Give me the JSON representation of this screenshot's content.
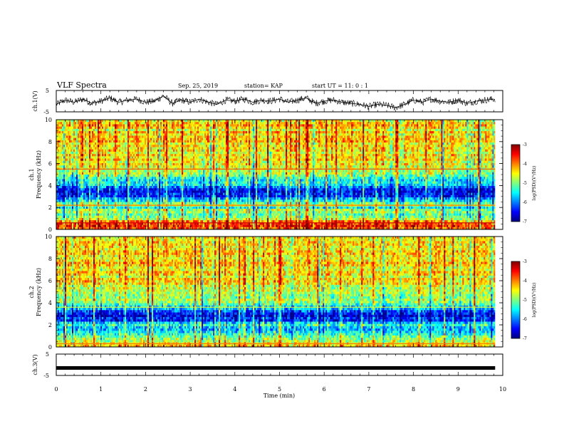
{
  "header": {
    "title": "VLF Spectra",
    "date": "Sep. 25, 2019",
    "station": "station= KAP",
    "start": "start UT =  11: 0  : 1"
  },
  "colormap": [
    "#00007f",
    "#0000ff",
    "#007fff",
    "#00ffff",
    "#7fff7f",
    "#ffff00",
    "#ff7f00",
    "#ff0000",
    "#7f0000"
  ],
  "chart_data": [
    {
      "id": "ch1-waveform",
      "type": "line",
      "ylabel": "ch.1(V)",
      "ylim": [
        -5,
        5
      ],
      "yticks": [
        "5",
        "-5"
      ],
      "xlim": [
        0,
        10
      ],
      "series": [
        {
          "x": [
            0,
            0.2,
            0.4,
            0.6,
            0.8,
            1.0,
            1.2,
            1.4,
            1.6,
            1.8,
            2.0,
            2.2,
            2.4,
            2.6,
            2.8,
            3.0,
            3.2,
            3.4,
            3.6,
            3.8,
            4.0,
            4.2,
            4.4,
            4.6,
            4.8,
            5.0,
            5.2,
            5.4,
            5.6,
            5.8,
            6.0,
            6.2,
            6.4,
            6.6,
            6.8,
            7.0,
            7.2,
            7.4,
            7.6,
            7.8,
            8.0,
            8.2,
            8.4,
            8.6,
            8.8,
            9.0,
            9.2,
            9.4,
            9.6,
            9.8
          ],
          "y": [
            -1.5,
            0.5,
            -0.5,
            1.0,
            -1.0,
            0.0,
            1.5,
            -0.5,
            0.5,
            1.0,
            -0.5,
            0.0,
            2.5,
            -1.0,
            0.5,
            -0.5,
            1.0,
            -0.5,
            -1.5,
            0.5,
            0.0,
            1.0,
            -0.5,
            0.5,
            0.0,
            1.0,
            -0.5,
            0.5,
            1.5,
            -1.0,
            0.0,
            0.5,
            -0.5,
            -1.0,
            -1.5,
            -2.5,
            -1.5,
            -2.0,
            -3.0,
            -1.5,
            0.5,
            -0.5,
            1.0,
            0.0,
            -0.5,
            0.5,
            -1.0,
            0.0,
            0.5,
            1.0
          ]
        }
      ]
    },
    {
      "id": "ch1-spectrogram",
      "type": "heatmap",
      "ylabel": "ch.1\nFrequency (kHz)",
      "ylim": [
        0,
        10
      ],
      "yticks": [
        "0",
        "2",
        "4",
        "6",
        "8",
        "10"
      ],
      "xlim": [
        0,
        9.83
      ],
      "colorbar": {
        "label": "log(PSD)(V²/Hz)",
        "range": [
          -7,
          -3
        ],
        "ticks": [
          "-3",
          "-4",
          "-5",
          "-6",
          "-7"
        ]
      },
      "profile": [
        [
          0.0,
          -3.8
        ],
        [
          0.4,
          -3.5
        ],
        [
          0.8,
          -4.0
        ],
        [
          1.0,
          -4.8
        ],
        [
          1.4,
          -5.1
        ],
        [
          1.8,
          -5.0
        ],
        [
          2.0,
          -5.6
        ],
        [
          2.2,
          -4.9
        ],
        [
          2.6,
          -5.4
        ],
        [
          3.0,
          -6.3
        ],
        [
          3.4,
          -6.6
        ],
        [
          3.8,
          -6.0
        ],
        [
          4.2,
          -5.6
        ],
        [
          4.8,
          -5.3
        ],
        [
          5.0,
          -5.0
        ],
        [
          5.6,
          -4.6
        ],
        [
          6.0,
          -4.7
        ],
        [
          6.5,
          -4.4
        ],
        [
          7.0,
          -4.6
        ],
        [
          7.5,
          -4.3
        ],
        [
          8.0,
          -4.4
        ],
        [
          8.5,
          -4.2
        ],
        [
          9.0,
          -4.5
        ],
        [
          9.5,
          -4.3
        ],
        [
          10.0,
          -4.4
        ]
      ],
      "lines": [
        [
          0.6,
          -3.3
        ],
        [
          2.2,
          -4.0
        ],
        [
          5.5,
          -3.8
        ]
      ]
    },
    {
      "id": "ch2-spectrogram",
      "type": "heatmap",
      "ylabel": "ch.2\nFrequency (kHz)",
      "ylim": [
        0,
        10
      ],
      "yticks": [
        "0",
        "2",
        "4",
        "6",
        "8",
        "10"
      ],
      "xlim": [
        0,
        9.83
      ],
      "colorbar": {
        "label": "log(PSD)(V²/Hz)",
        "range": [
          -7,
          -3
        ],
        "ticks": [
          "-3",
          "-4",
          "-5",
          "-6",
          "-7"
        ]
      },
      "profile": [
        [
          0.0,
          -4.2
        ],
        [
          0.4,
          -4.5
        ],
        [
          0.8,
          -5.0
        ],
        [
          1.2,
          -5.4
        ],
        [
          1.6,
          -5.7
        ],
        [
          2.0,
          -5.5
        ],
        [
          2.4,
          -6.3
        ],
        [
          2.8,
          -6.5
        ],
        [
          3.2,
          -6.3
        ],
        [
          3.6,
          -5.6
        ],
        [
          4.0,
          -5.0
        ],
        [
          4.6,
          -4.8
        ],
        [
          5.2,
          -4.6
        ],
        [
          6.0,
          -4.5
        ],
        [
          7.0,
          -4.4
        ],
        [
          8.0,
          -4.3
        ],
        [
          9.0,
          -4.4
        ],
        [
          10.0,
          -4.4
        ]
      ],
      "lines": [
        [
          0.3,
          -4.0
        ],
        [
          3.6,
          -4.6
        ]
      ]
    },
    {
      "id": "ch3-waveform",
      "type": "line",
      "ylabel": "ch.3(V)",
      "ylim": [
        -5,
        5
      ],
      "yticks": [
        "5",
        "-5"
      ],
      "xlim": [
        0,
        10
      ],
      "series": [
        {
          "x": [
            0,
            9.83
          ],
          "y": [
            -1.5,
            -1.5
          ]
        }
      ]
    }
  ],
  "xaxis": {
    "label": "Time (min)",
    "ticks": [
      "0",
      "1",
      "2",
      "3",
      "4",
      "5",
      "6",
      "7",
      "8",
      "9",
      "10"
    ],
    "range": [
      0,
      10
    ]
  }
}
